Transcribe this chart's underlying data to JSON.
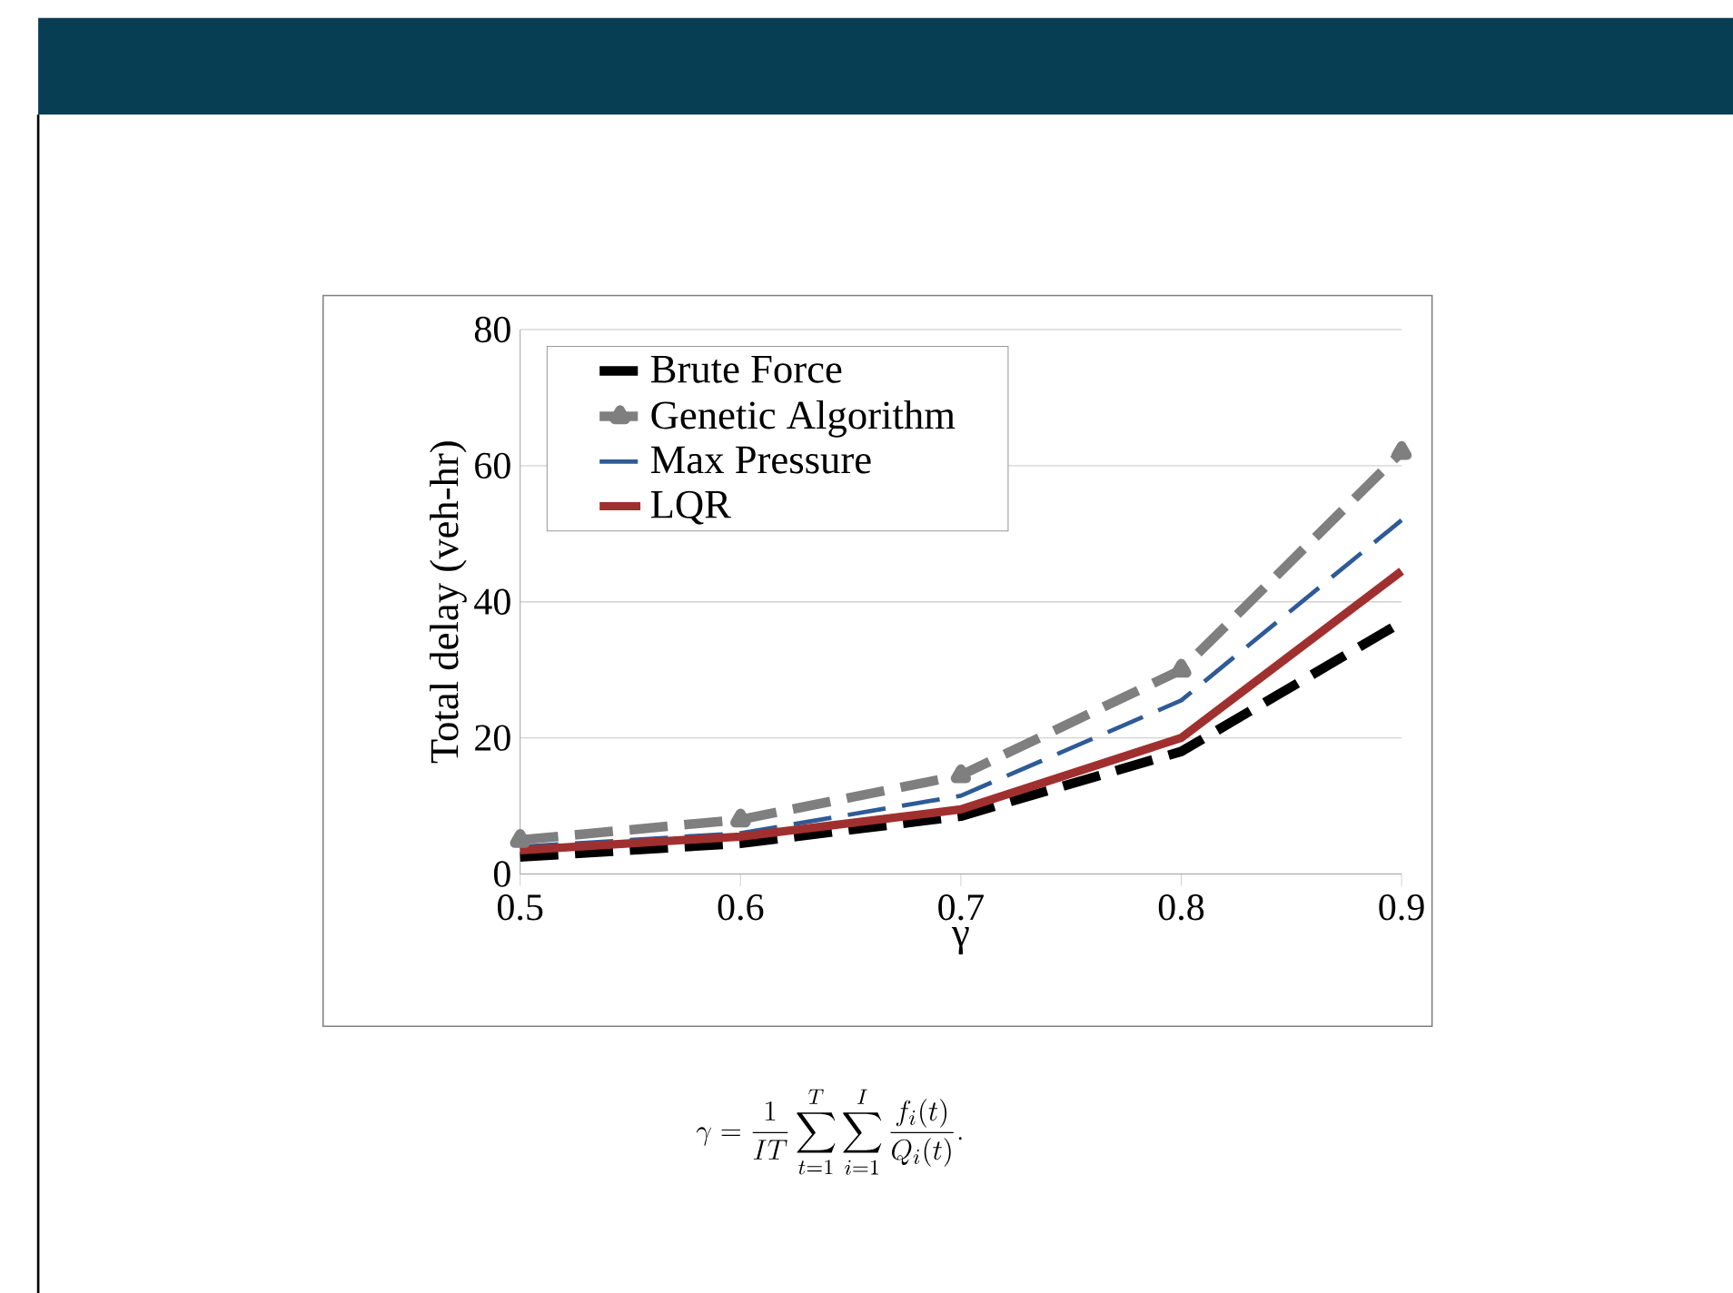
{
  "chart_data": {
    "type": "line",
    "x": [
      0.5,
      0.6,
      0.7,
      0.8,
      0.9
    ],
    "series": [
      {
        "name": "Brute Force",
        "color": "#000000",
        "values": [
          2.5,
          4.5,
          8.5,
          18,
          37
        ],
        "line_style": "dashed",
        "marker": "none"
      },
      {
        "name": "Genetic Algorithm",
        "color": "#7f7f7f",
        "values": [
          5,
          8,
          14.5,
          30,
          62
        ],
        "line_style": "dashed",
        "marker": "triangle"
      },
      {
        "name": "Max Pressure",
        "color": "#2e5b97",
        "values": [
          4,
          6,
          11.5,
          25.5,
          52
        ],
        "line_style": "dashed",
        "marker": "none"
      },
      {
        "name": "LQR",
        "color": "#a0302f",
        "values": [
          3.5,
          5.5,
          9.5,
          20,
          44.5
        ],
        "line_style": "solid",
        "marker": "none"
      }
    ],
    "xlim": [
      0.5,
      0.9
    ],
    "xticks": [
      0.5,
      0.6,
      0.7,
      0.8,
      0.9
    ],
    "ylim": [
      0,
      80
    ],
    "yticks": [
      0,
      20,
      40,
      60,
      80
    ],
    "xlabel": "γ",
    "ylabel": "Total delay (veh-hr)",
    "grid": "y",
    "legend": "top left",
    "annotations": [
      "\\gamma=\\frac{1}{IT}\\sum_{t=1}^{T}\\sum_{i=1}^{I}\\frac{f_i(t)}{Q_i(t)}."
    ]
  }
}
